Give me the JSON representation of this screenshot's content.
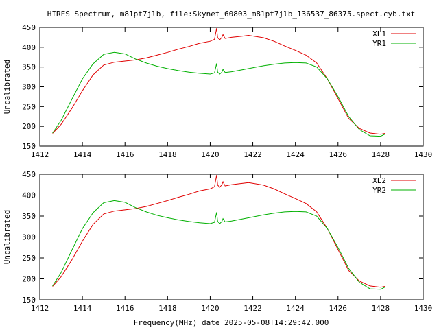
{
  "title": "HIRES Spectrum, m81pt7jlb, file:Skynet_60803_m81pt7jlb_136537_86375.spect.cyb.txt",
  "xlabel": "Frequency(MHz) date 2025-05-08T14:29:42.000",
  "colors": {
    "red": "#e00000",
    "green": "#00b000"
  },
  "chart_data": [
    {
      "type": "line",
      "ylabel": "Uncalibrated",
      "xlim": [
        1412,
        1430
      ],
      "ylim": [
        150,
        450
      ],
      "xticks": [
        1412,
        1414,
        1416,
        1418,
        1420,
        1422,
        1424,
        1426,
        1428,
        1430
      ],
      "yticks": [
        150,
        200,
        250,
        300,
        350,
        400,
        450
      ],
      "legend_position": "top-right",
      "grid": false,
      "series": [
        {
          "name": "XL1",
          "color": "#e00000",
          "x": [
            1412.6,
            1413.0,
            1413.5,
            1414.0,
            1414.5,
            1415.0,
            1415.5,
            1416.0,
            1416.5,
            1417.0,
            1417.5,
            1418.0,
            1418.5,
            1419.0,
            1419.5,
            1420.0,
            1420.2,
            1420.3,
            1420.35,
            1420.45,
            1420.55,
            1420.6,
            1420.7,
            1421.0,
            1421.5,
            1421.8,
            1422.5,
            1423.0,
            1423.5,
            1424.0,
            1424.5,
            1425.0,
            1425.5,
            1426.0,
            1426.5,
            1427.0,
            1427.5,
            1428.0,
            1428.2
          ],
          "y": [
            182,
            205,
            245,
            290,
            330,
            355,
            362,
            365,
            368,
            373,
            380,
            387,
            395,
            402,
            410,
            415,
            420,
            448,
            424,
            419,
            425,
            432,
            422,
            425,
            428,
            430,
            424,
            415,
            403,
            392,
            380,
            360,
            320,
            270,
            220,
            195,
            183,
            180,
            182
          ]
        },
        {
          "name": "YR1",
          "color": "#00b000",
          "x": [
            1412.6,
            1413.0,
            1413.5,
            1414.0,
            1414.5,
            1415.0,
            1415.5,
            1416.0,
            1416.5,
            1417.0,
            1417.5,
            1418.0,
            1418.5,
            1419.0,
            1419.5,
            1420.0,
            1420.2,
            1420.3,
            1420.35,
            1420.45,
            1420.55,
            1420.6,
            1420.7,
            1421.0,
            1421.5,
            1422.0,
            1422.5,
            1423.0,
            1423.5,
            1424.0,
            1424.5,
            1425.0,
            1425.5,
            1426.0,
            1426.5,
            1427.0,
            1427.5,
            1428.0,
            1428.2
          ],
          "y": [
            183,
            215,
            268,
            320,
            358,
            382,
            387,
            383,
            370,
            360,
            352,
            346,
            341,
            337,
            334,
            332,
            335,
            359,
            337,
            332,
            337,
            344,
            336,
            338,
            343,
            348,
            353,
            357,
            360,
            361,
            360,
            350,
            320,
            275,
            225,
            192,
            176,
            175,
            180
          ]
        }
      ]
    },
    {
      "type": "line",
      "ylabel": "Uncalibrated",
      "xlim": [
        1412,
        1430
      ],
      "ylim": [
        150,
        450
      ],
      "xticks": [
        1412,
        1414,
        1416,
        1418,
        1420,
        1422,
        1424,
        1426,
        1428,
        1430
      ],
      "yticks": [
        150,
        200,
        250,
        300,
        350,
        400,
        450
      ],
      "legend_position": "top-right",
      "grid": false,
      "series": [
        {
          "name": "XL2",
          "color": "#e00000",
          "x": [
            1412.6,
            1413.0,
            1413.5,
            1414.0,
            1414.5,
            1415.0,
            1415.5,
            1416.0,
            1416.5,
            1417.0,
            1417.5,
            1418.0,
            1418.5,
            1419.0,
            1419.5,
            1420.0,
            1420.2,
            1420.3,
            1420.35,
            1420.45,
            1420.55,
            1420.6,
            1420.7,
            1421.0,
            1421.5,
            1421.8,
            1422.5,
            1423.0,
            1423.5,
            1424.0,
            1424.5,
            1425.0,
            1425.5,
            1426.0,
            1426.5,
            1427.0,
            1427.5,
            1428.0,
            1428.2
          ],
          "y": [
            182,
            205,
            245,
            290,
            330,
            355,
            362,
            365,
            368,
            373,
            380,
            387,
            395,
            402,
            410,
            415,
            420,
            448,
            424,
            419,
            425,
            432,
            422,
            425,
            428,
            430,
            424,
            415,
            403,
            392,
            380,
            360,
            320,
            270,
            220,
            195,
            183,
            180,
            182
          ]
        },
        {
          "name": "YR2",
          "color": "#00b000",
          "x": [
            1412.6,
            1413.0,
            1413.5,
            1414.0,
            1414.5,
            1415.0,
            1415.5,
            1416.0,
            1416.5,
            1417.0,
            1417.5,
            1418.0,
            1418.5,
            1419.0,
            1419.5,
            1420.0,
            1420.2,
            1420.3,
            1420.35,
            1420.45,
            1420.55,
            1420.6,
            1420.7,
            1421.0,
            1421.5,
            1422.0,
            1422.5,
            1423.0,
            1423.5,
            1424.0,
            1424.5,
            1425.0,
            1425.5,
            1426.0,
            1426.5,
            1427.0,
            1427.5,
            1428.0,
            1428.2
          ],
          "y": [
            183,
            215,
            268,
            320,
            358,
            382,
            387,
            383,
            370,
            360,
            352,
            346,
            341,
            337,
            334,
            332,
            335,
            359,
            337,
            332,
            337,
            344,
            336,
            338,
            343,
            348,
            353,
            357,
            360,
            361,
            360,
            350,
            320,
            275,
            225,
            192,
            176,
            175,
            180
          ]
        }
      ]
    }
  ]
}
